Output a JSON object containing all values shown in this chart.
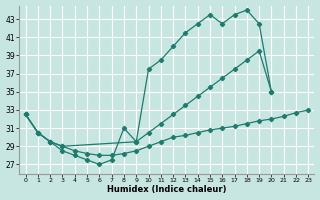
{
  "xlabel": "Humidex (Indice chaleur)",
  "background_color": "#c8e6e1",
  "grid_color": "#ffffff",
  "line_color": "#1e7b6e",
  "xlim": [
    -0.5,
    23.5
  ],
  "ylim": [
    26.0,
    44.5
  ],
  "xtick_labels": [
    "0",
    "1",
    "2",
    "3",
    "4",
    "5",
    "6",
    "7",
    "8",
    "9",
    "10",
    "11",
    "12",
    "13",
    "14",
    "15",
    "16",
    "17",
    "18",
    "19",
    "20",
    "21",
    "22",
    "23"
  ],
  "ytick_vals": [
    27,
    29,
    31,
    33,
    35,
    37,
    39,
    41,
    43
  ],
  "top_x": [
    0,
    1,
    2,
    3,
    4,
    5,
    6,
    7,
    8,
    9,
    10,
    11,
    12,
    13,
    14,
    15,
    16,
    17,
    18,
    19,
    20
  ],
  "top_y": [
    32.5,
    30.5,
    29.5,
    28.5,
    28.0,
    27.5,
    27.0,
    27.5,
    31.0,
    29.5,
    37.5,
    38.5,
    40.0,
    41.5,
    42.5,
    43.5,
    42.5,
    43.5,
    44.0,
    42.5,
    35.0
  ],
  "mid_x": [
    0,
    1,
    2,
    3,
    9,
    10,
    11,
    12,
    13,
    14,
    15,
    16,
    17,
    18,
    19,
    20
  ],
  "mid_y": [
    32.5,
    30.5,
    29.5,
    29.0,
    29.5,
    30.5,
    31.5,
    32.5,
    33.5,
    34.5,
    35.5,
    36.5,
    37.5,
    38.5,
    39.5,
    35.0
  ],
  "bot_x": [
    0,
    1,
    2,
    3,
    4,
    5,
    6,
    7,
    8,
    9,
    10,
    11,
    12,
    13,
    14,
    15,
    16,
    17,
    18,
    19,
    20,
    21,
    22,
    23
  ],
  "bot_y": [
    32.5,
    30.5,
    29.5,
    29.0,
    28.5,
    28.2,
    28.0,
    28.0,
    28.2,
    28.5,
    29.0,
    29.5,
    30.0,
    30.2,
    30.5,
    30.8,
    31.0,
    31.2,
    31.5,
    31.8,
    32.0,
    32.3,
    32.7,
    33.0
  ]
}
